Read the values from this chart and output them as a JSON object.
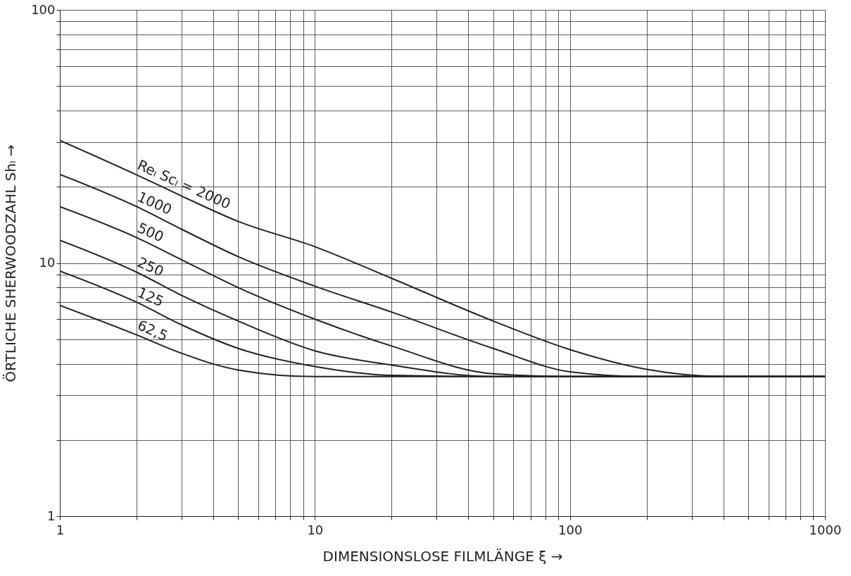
{
  "chart_data": {
    "type": "line",
    "xlabel": "DIMENSIONSLOSE FILMLÄNGE ξ  →",
    "ylabel": "ÖRTLICHE SHERWOODZAHL Shₗ  →",
    "x": [
      1,
      2,
      3,
      5,
      10,
      20,
      50,
      100,
      200,
      400,
      1000
    ],
    "series": [
      {
        "name": "Reₗ Scₗ = 2000",
        "color": "#222222",
        "values": [
          30.5,
          22.3,
          18.4,
          14.6,
          11.6,
          8.7,
          5.9,
          4.55,
          3.8,
          3.56,
          3.56
        ]
      },
      {
        "name": "1000",
        "color": "#222222",
        "values": [
          22.4,
          16.7,
          13.6,
          10.6,
          8.1,
          6.4,
          4.6,
          3.72,
          3.56,
          3.56,
          3.56
        ]
      },
      {
        "name": "500",
        "color": "#222222",
        "values": [
          16.7,
          12.6,
          10.3,
          8.0,
          6.0,
          4.7,
          3.65,
          3.56,
          3.56,
          3.56,
          3.56
        ]
      },
      {
        "name": "250",
        "color": "#222222",
        "values": [
          12.3,
          9.2,
          7.45,
          5.9,
          4.5,
          3.95,
          3.56,
          3.56,
          3.56,
          3.56,
          3.56
        ]
      },
      {
        "name": "125",
        "color": "#222222",
        "values": [
          9.3,
          7.0,
          5.7,
          4.6,
          3.9,
          3.6,
          3.56,
          3.56,
          3.56,
          3.56,
          3.56
        ]
      },
      {
        "name": "62,5",
        "color": "#222222",
        "values": [
          6.8,
          5.2,
          4.4,
          3.78,
          3.56,
          3.56,
          3.56,
          3.56,
          3.56,
          3.56,
          3.56
        ]
      }
    ],
    "log": "xy",
    "xlim": [
      1,
      1000
    ],
    "ylim": [
      1,
      100
    ],
    "xticks": [
      1,
      {
        "value": 2,
        "label": null
      },
      {
        "value": 3,
        "label": null
      },
      {
        "value": 4,
        "label": null
      },
      {
        "value": 5,
        "label": null
      },
      {
        "value": 6,
        "label": null
      },
      {
        "value": 7,
        "label": null
      },
      {
        "value": 8,
        "label": null
      },
      {
        "value": 9,
        "label": null
      },
      10,
      {
        "value": 20,
        "label": null
      },
      {
        "value": 30,
        "label": null
      },
      {
        "value": 40,
        "label": null
      },
      {
        "value": 50,
        "label": null
      },
      {
        "value": 60,
        "label": null
      },
      {
        "value": 70,
        "label": null
      },
      {
        "value": 80,
        "label": null
      },
      {
        "value": 90,
        "label": null
      },
      100,
      {
        "value": 200,
        "label": null
      },
      {
        "value": 300,
        "label": null
      },
      {
        "value": 400,
        "label": null
      },
      {
        "value": 500,
        "label": null
      },
      {
        "value": 600,
        "label": null
      },
      {
        "value": 700,
        "label": null
      },
      {
        "value": 800,
        "label": null
      },
      {
        "value": 900,
        "label": null
      },
      1000
    ],
    "yticks": [
      1,
      {
        "value": 2,
        "label": null
      },
      {
        "value": 3,
        "label": null
      },
      {
        "value": 4,
        "label": null
      },
      {
        "value": 5,
        "label": null
      },
      {
        "value": 6,
        "label": null
      },
      {
        "value": 7,
        "label": null
      },
      {
        "value": 8,
        "label": null
      },
      {
        "value": 9,
        "label": null
      },
      10,
      {
        "value": 20,
        "label": null
      },
      {
        "value": 30,
        "label": null
      },
      {
        "value": 40,
        "label": null
      },
      {
        "value": 50,
        "label": null
      },
      {
        "value": 60,
        "label": null
      },
      {
        "value": 70,
        "label": null
      },
      {
        "value": 80,
        "label": null
      },
      {
        "value": 90,
        "label": null
      },
      100
    ],
    "grid": true,
    "legend": false,
    "marker": "none",
    "line_style": "solid"
  }
}
